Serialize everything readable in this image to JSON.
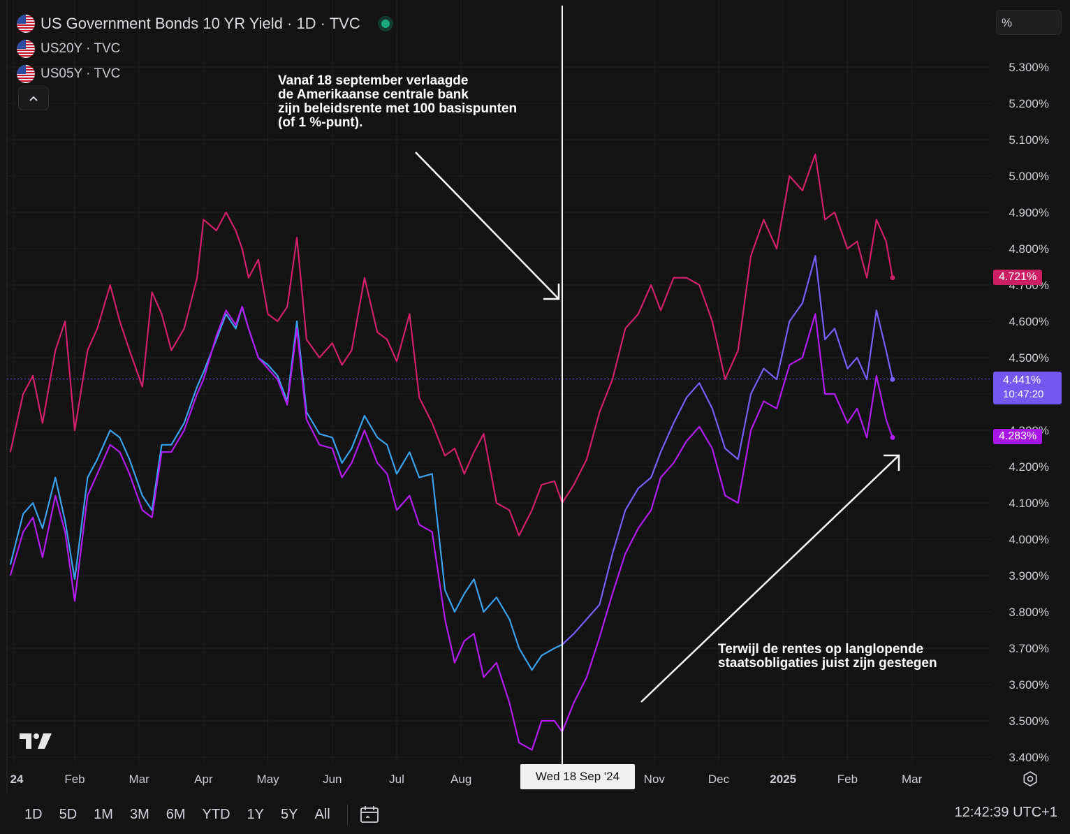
{
  "legend": {
    "main_title": "US Government Bonds 10 YR Yield · 1D · TVC",
    "series2": "US20Y · TVC",
    "series3": "US05Y · TVC",
    "collapse_icon": "chevron-up-icon"
  },
  "scale_button": "%",
  "annotations": {
    "top": "Vanaf 18 september verlaagde\nde Amerikaanse centrale bank\nzijn beleidsrente met 100 basispunten\n(of 1 %-punt).",
    "bottom": "Terwijl de rentes op langlopende\nstaatsobligaties juist zijn gestegen"
  },
  "badges": {
    "us20y": "4.721%",
    "us10y_value": "4.441%",
    "us10y_countdown": "10:47:20",
    "us05y": "4.283%"
  },
  "crosshair_date": "Wed 18 Sep '24",
  "timeframes": [
    "1D",
    "5D",
    "1M",
    "3M",
    "6M",
    "YTD",
    "1Y",
    "5Y",
    "All"
  ],
  "clock": "12:42:39 UTC+1",
  "colors": {
    "background": "#131313",
    "us20y": "#d0206a",
    "us10y": "#7b5cff",
    "us10y_pre": "#3ba0ee",
    "us05y": "#b11cf2",
    "badge_us20y": "#cc1f63",
    "badge_us10y": "#7457f0",
    "badge_us05y": "#a716e6"
  },
  "chart_data": {
    "type": "line",
    "title": "US Government Bonds 10 YR Yield · 1D · TVC",
    "ylabel": "%",
    "ylim": [
      3.37,
      5.45
    ],
    "y_ticks": [
      "5.300%",
      "5.200%",
      "5.100%",
      "5.000%",
      "4.900%",
      "4.800%",
      "4.700%",
      "4.600%",
      "4.500%",
      "4.400%",
      "4.300%",
      "4.200%",
      "4.100%",
      "4.000%",
      "3.900%",
      "3.800%",
      "3.700%",
      "3.600%",
      "3.500%",
      "3.400%"
    ],
    "y_tick_values": [
      5.3,
      5.2,
      5.1,
      5.0,
      4.9,
      4.8,
      4.7,
      4.6,
      4.5,
      4.4,
      4.3,
      4.2,
      4.1,
      4.0,
      3.9,
      3.8,
      3.7,
      3.6,
      3.5,
      3.4
    ],
    "x_labels": [
      {
        "label": "24",
        "month": 0.05
      },
      {
        "label": "Feb",
        "month": 1.0
      },
      {
        "label": "Mar",
        "month": 2.0
      },
      {
        "label": "Apr",
        "month": 3.0
      },
      {
        "label": "May",
        "month": 4.0
      },
      {
        "label": "Jun",
        "month": 5.0
      },
      {
        "label": "Jul",
        "month": 6.0
      },
      {
        "label": "Aug",
        "month": 7.0
      },
      {
        "label": "Nov",
        "month": 10.0
      },
      {
        "label": "Dec",
        "month": 11.0
      },
      {
        "label": "2025",
        "month": 12.0
      },
      {
        "label": "Feb",
        "month": 13.0
      },
      {
        "label": "Mar",
        "month": 14.0
      }
    ],
    "crosshair_month": 8.57,
    "current_line_value": 4.441,
    "series": [
      {
        "name": "US20Y",
        "months": [
          0.0,
          0.2,
          0.35,
          0.5,
          0.7,
          0.85,
          1.0,
          1.2,
          1.35,
          1.55,
          1.7,
          1.85,
          2.05,
          2.2,
          2.35,
          2.5,
          2.7,
          2.9,
          3.0,
          3.2,
          3.35,
          3.5,
          3.6,
          3.7,
          3.85,
          4.0,
          4.15,
          4.3,
          4.45,
          4.6,
          4.8,
          5.0,
          5.15,
          5.3,
          5.5,
          5.7,
          5.85,
          6.0,
          6.2,
          6.35,
          6.55,
          6.75,
          6.9,
          7.05,
          7.2,
          7.35,
          7.55,
          7.75,
          7.9,
          8.1,
          8.25,
          8.45,
          8.57,
          8.75,
          8.95,
          9.15,
          9.35,
          9.55,
          9.75,
          9.95,
          10.1,
          10.3,
          10.5,
          10.7,
          10.9,
          11.1,
          11.3,
          11.5,
          11.7,
          11.9,
          12.1,
          12.3,
          12.5,
          12.65,
          12.8,
          13.0,
          13.15,
          13.3,
          13.45,
          13.6,
          13.7
        ],
        "values": [
          4.24,
          4.4,
          4.45,
          4.32,
          4.52,
          4.6,
          4.3,
          4.52,
          4.58,
          4.7,
          4.6,
          4.52,
          4.42,
          4.68,
          4.62,
          4.52,
          4.58,
          4.72,
          4.88,
          4.85,
          4.9,
          4.85,
          4.8,
          4.72,
          4.77,
          4.62,
          4.6,
          4.64,
          4.83,
          4.55,
          4.5,
          4.54,
          4.48,
          4.52,
          4.72,
          4.57,
          4.55,
          4.49,
          4.62,
          4.39,
          4.32,
          4.23,
          4.25,
          4.18,
          4.24,
          4.29,
          4.1,
          4.08,
          4.01,
          4.08,
          4.15,
          4.16,
          4.1,
          4.15,
          4.22,
          4.35,
          4.44,
          4.58,
          4.62,
          4.7,
          4.63,
          4.72,
          4.72,
          4.7,
          4.6,
          4.44,
          4.52,
          4.78,
          4.88,
          4.8,
          5.0,
          4.96,
          5.06,
          4.88,
          4.9,
          4.8,
          4.82,
          4.72,
          4.88,
          4.82,
          4.72
        ]
      },
      {
        "name": "US10Y",
        "months": [
          0.0,
          0.2,
          0.35,
          0.5,
          0.7,
          0.85,
          1.0,
          1.2,
          1.35,
          1.55,
          1.7,
          1.85,
          2.05,
          2.2,
          2.35,
          2.5,
          2.7,
          2.9,
          3.0,
          3.2,
          3.35,
          3.5,
          3.6,
          3.7,
          3.85,
          4.0,
          4.15,
          4.3,
          4.45,
          4.6,
          4.8,
          5.0,
          5.15,
          5.3,
          5.5,
          5.7,
          5.85,
          6.0,
          6.2,
          6.35,
          6.55,
          6.75,
          6.9,
          7.05,
          7.2,
          7.35,
          7.55,
          7.75,
          7.9,
          8.1,
          8.25,
          8.45,
          8.57,
          8.75,
          8.95,
          9.15,
          9.35,
          9.55,
          9.75,
          9.95,
          10.1,
          10.3,
          10.5,
          10.7,
          10.9,
          11.1,
          11.3,
          11.5,
          11.7,
          11.9,
          12.1,
          12.3,
          12.5,
          12.65,
          12.8,
          13.0,
          13.15,
          13.3,
          13.45,
          13.6,
          13.7
        ],
        "values": [
          3.93,
          4.07,
          4.1,
          4.03,
          4.17,
          4.05,
          3.89,
          4.17,
          4.22,
          4.3,
          4.28,
          4.22,
          4.12,
          4.08,
          4.26,
          4.26,
          4.32,
          4.42,
          4.46,
          4.55,
          4.62,
          4.58,
          4.64,
          4.58,
          4.5,
          4.48,
          4.45,
          4.38,
          4.6,
          4.35,
          4.29,
          4.28,
          4.21,
          4.25,
          4.34,
          4.28,
          4.26,
          4.18,
          4.24,
          4.17,
          4.18,
          3.86,
          3.8,
          3.85,
          3.89,
          3.8,
          3.84,
          3.78,
          3.7,
          3.64,
          3.68,
          3.7,
          3.71,
          3.74,
          3.78,
          3.82,
          3.96,
          4.08,
          4.14,
          4.17,
          4.24,
          4.32,
          4.39,
          4.43,
          4.36,
          4.25,
          4.22,
          4.4,
          4.47,
          4.44,
          4.6,
          4.65,
          4.78,
          4.55,
          4.58,
          4.47,
          4.5,
          4.44,
          4.63,
          4.52,
          4.44
        ]
      },
      {
        "name": "US05Y",
        "months": [
          0.0,
          0.2,
          0.35,
          0.5,
          0.7,
          0.85,
          1.0,
          1.2,
          1.35,
          1.55,
          1.7,
          1.85,
          2.05,
          2.2,
          2.35,
          2.5,
          2.7,
          2.9,
          3.0,
          3.2,
          3.35,
          3.5,
          3.6,
          3.7,
          3.85,
          4.0,
          4.15,
          4.3,
          4.45,
          4.6,
          4.8,
          5.0,
          5.15,
          5.3,
          5.5,
          5.7,
          5.85,
          6.0,
          6.2,
          6.35,
          6.55,
          6.75,
          6.9,
          7.05,
          7.2,
          7.35,
          7.55,
          7.75,
          7.9,
          8.1,
          8.25,
          8.45,
          8.57,
          8.75,
          8.95,
          9.15,
          9.35,
          9.55,
          9.75,
          9.95,
          10.1,
          10.3,
          10.5,
          10.7,
          10.9,
          11.1,
          11.3,
          11.5,
          11.7,
          11.9,
          12.1,
          12.3,
          12.5,
          12.65,
          12.8,
          13.0,
          13.15,
          13.3,
          13.45,
          13.6,
          13.7
        ],
        "values": [
          3.9,
          4.02,
          4.06,
          3.95,
          4.12,
          4.02,
          3.83,
          4.12,
          4.18,
          4.26,
          4.24,
          4.18,
          4.08,
          4.06,
          4.24,
          4.24,
          4.3,
          4.4,
          4.44,
          4.56,
          4.63,
          4.59,
          4.64,
          4.58,
          4.5,
          4.47,
          4.44,
          4.37,
          4.58,
          4.33,
          4.26,
          4.25,
          4.17,
          4.21,
          4.3,
          4.21,
          4.18,
          4.08,
          4.12,
          4.04,
          4.02,
          3.78,
          3.66,
          3.72,
          3.74,
          3.62,
          3.66,
          3.55,
          3.44,
          3.42,
          3.5,
          3.5,
          3.47,
          3.55,
          3.62,
          3.73,
          3.85,
          3.96,
          4.03,
          4.08,
          4.17,
          4.21,
          4.27,
          4.31,
          4.25,
          4.12,
          4.1,
          4.3,
          4.38,
          4.36,
          4.48,
          4.5,
          4.62,
          4.4,
          4.4,
          4.32,
          4.36,
          4.28,
          4.45,
          4.33,
          4.28
        ]
      }
    ]
  }
}
